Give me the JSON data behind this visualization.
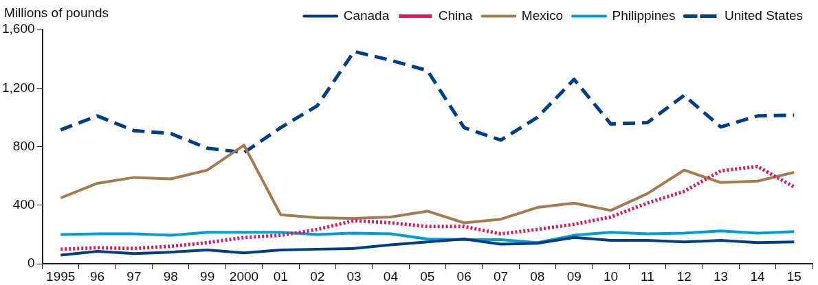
{
  "chart_data": {
    "type": "line",
    "ylabel": "Millions of pounds",
    "categories": [
      "1995",
      "96",
      "97",
      "98",
      "99",
      "2000",
      "01",
      "02",
      "03",
      "04",
      "05",
      "06",
      "07",
      "08",
      "09",
      "10",
      "11",
      "12",
      "13",
      "14",
      "15"
    ],
    "ylim": [
      0,
      1600
    ],
    "yticks": [
      0,
      {
        "value": 400,
        "label": "400"
      },
      {
        "value": 800,
        "label": "800"
      },
      {
        "value": 1200,
        "label": "1,200"
      },
      {
        "value": 1600,
        "label": "1,600"
      }
    ],
    "grid": false,
    "legend": "top right",
    "marker": "none",
    "series": [
      {
        "name": "Canada",
        "color": "#003f87",
        "line_style": "solid",
        "values": [
          60,
          85,
          70,
          80,
          95,
          75,
          95,
          100,
          105,
          130,
          150,
          170,
          135,
          140,
          180,
          160,
          160,
          150,
          160,
          145,
          150
        ]
      },
      {
        "name": "China",
        "color": "#e0195a",
        "line_style": "dotted",
        "values": [
          100,
          110,
          105,
          120,
          145,
          180,
          195,
          235,
          295,
          280,
          255,
          255,
          205,
          235,
          270,
          320,
          415,
          495,
          635,
          665,
          525
        ]
      },
      {
        "name": "Mexico",
        "color": "#a57c52",
        "line_style": "solid",
        "values": [
          450,
          550,
          590,
          580,
          640,
          810,
          335,
          315,
          310,
          320,
          360,
          280,
          305,
          385,
          415,
          365,
          480,
          640,
          555,
          565,
          625
        ]
      },
      {
        "name": "Philippines",
        "color": "#009ddc",
        "line_style": "solid",
        "values": [
          200,
          205,
          205,
          195,
          215,
          215,
          215,
          200,
          210,
          205,
          170,
          165,
          165,
          145,
          195,
          215,
          205,
          210,
          225,
          210,
          220
        ]
      },
      {
        "name": "United States",
        "color": "#003f87",
        "line_style": "dashed",
        "values": [
          915,
          1010,
          910,
          890,
          790,
          760,
          930,
          1080,
          1450,
          1390,
          1320,
          930,
          845,
          1000,
          1260,
          955,
          965,
          1150,
          935,
          1010,
          1015
        ]
      }
    ]
  }
}
